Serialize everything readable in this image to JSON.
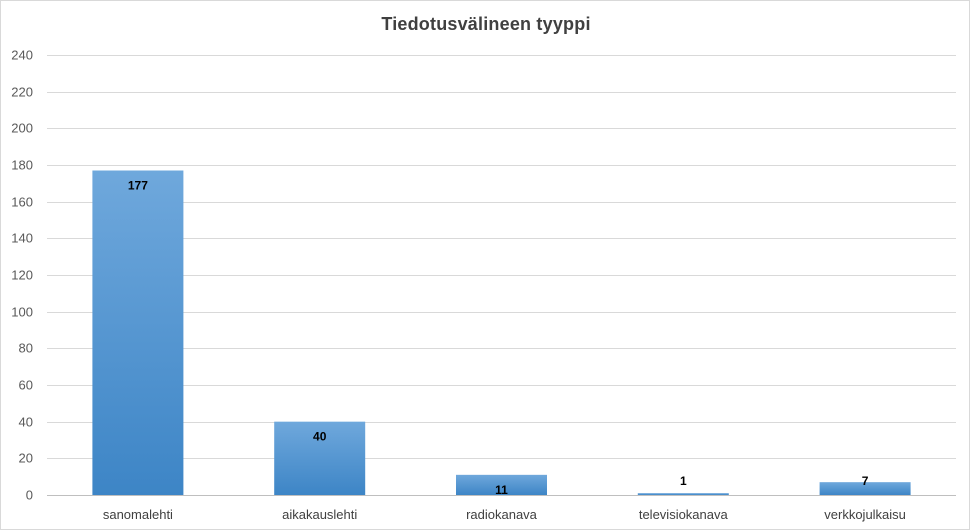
{
  "chart_data": {
    "type": "bar",
    "title": "Tiedotusvälineen tyyppi",
    "categories": [
      "sanomalehti",
      "aikakauslehti",
      "radiokanava",
      "televisiokanava",
      "verkkojulkaisu"
    ],
    "values": [
      177,
      40,
      11,
      1,
      7
    ],
    "xlabel": "",
    "ylabel": "",
    "ylim": [
      0,
      240
    ],
    "yticks": [
      0,
      20,
      40,
      60,
      80,
      100,
      120,
      140,
      160,
      180,
      200,
      220,
      240
    ],
    "grid": true,
    "legend": "none",
    "bar_color_top": "#6fa8dc",
    "bar_color_bottom": "#3d85c6",
    "grid_color": "#d9d9d9"
  }
}
